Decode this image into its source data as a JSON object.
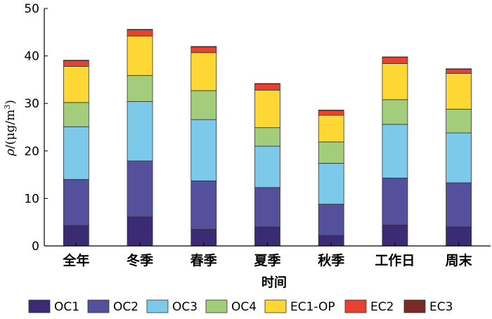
{
  "chart_data": {
    "type": "bar",
    "stacked": true,
    "categories": [
      "全年",
      "冬季",
      "春季",
      "夏季",
      "秋季",
      "工作日",
      "周末"
    ],
    "xlabel": "时间",
    "ylabel": {
      "prefix": "ρ",
      "unit": "/(μg/m",
      "sup": "3",
      "suffix": ")"
    },
    "ylim": [
      0,
      50
    ],
    "yticks": [
      0,
      10,
      20,
      30,
      40,
      50
    ],
    "grid": false,
    "legend_position": "bottom",
    "series": [
      {
        "name": "OC1",
        "color": "#3b2b74",
        "values": [
          4.3,
          6.1,
          3.5,
          4.0,
          2.2,
          4.4,
          4.0
        ]
      },
      {
        "name": "OC2",
        "color": "#54509b",
        "values": [
          9.7,
          11.8,
          10.2,
          8.3,
          6.6,
          9.9,
          9.3
        ]
      },
      {
        "name": "OC3",
        "color": "#7cc9e9",
        "values": [
          11.1,
          12.5,
          12.9,
          8.7,
          8.6,
          11.3,
          10.5
        ]
      },
      {
        "name": "OC4",
        "color": "#a3cd7b",
        "values": [
          5.1,
          5.5,
          6.1,
          3.9,
          4.5,
          5.2,
          5.0
        ]
      },
      {
        "name": "EC1-OP",
        "color": "#fdd835",
        "values": [
          7.6,
          8.3,
          8.0,
          7.9,
          5.6,
          7.6,
          7.5
        ]
      },
      {
        "name": "EC2",
        "color": "#e8412f",
        "values": [
          1.2,
          1.3,
          1.2,
          1.3,
          1.0,
          1.3,
          0.9
        ]
      },
      {
        "name": "EC3",
        "color": "#7b2a24",
        "values": [
          0.1,
          0.1,
          0.1,
          0.1,
          0.1,
          0.1,
          0.1
        ]
      }
    ]
  }
}
